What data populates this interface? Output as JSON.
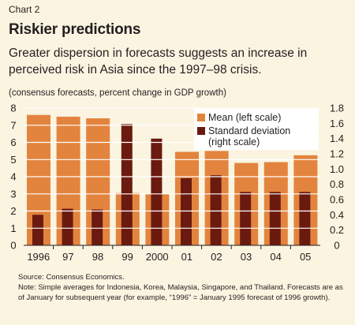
{
  "header": {
    "kicker": "Chart 2",
    "title": "Riskier predictions",
    "subtitle": "Greater dispersion in forecasts suggests an increase in perceived risk in Asia since the 1997–98 crisis.",
    "unit_note": "(consensus forecasts, percent change in GDP growth)"
  },
  "footer": {
    "source": "Source: Consensus Economics.",
    "note": "Note: Simple averages for Indonesia, Korea, Malaysia, Singapore, and Thailand. Forecasts are as of January for subsequent year (for example, “1996” = January 1995 forecast of 1996 growth)."
  },
  "colors": {
    "background": "#fbf4e1",
    "mean": "#e3843e",
    "std": "#6b1a10",
    "grid": "#ffffff",
    "text": "#231f20"
  },
  "chart_data": {
    "type": "bar",
    "categories": [
      "1996",
      "97",
      "98",
      "99",
      "2000",
      "01",
      "02",
      "03",
      "04",
      "05"
    ],
    "series": [
      {
        "name": "Mean (left scale)",
        "axis": "left",
        "values": [
          7.6,
          7.5,
          7.4,
          3.05,
          3.0,
          5.45,
          5.5,
          4.8,
          4.85,
          5.25
        ]
      },
      {
        "name": "Standard deviation (right scale)",
        "axis": "right",
        "values": [
          0.4,
          0.48,
          0.47,
          1.59,
          1.4,
          0.88,
          0.92,
          0.7,
          0.7,
          0.7
        ]
      }
    ],
    "y_left": {
      "range": [
        0,
        8
      ],
      "ticks": [
        "0",
        "1",
        "2",
        "3",
        "4",
        "5",
        "6",
        "7",
        "8"
      ]
    },
    "y_right": {
      "range": [
        0,
        1.8
      ],
      "ticks": [
        "0",
        "0.2",
        "0.4",
        "0.6",
        "0.8",
        "1.0",
        "1.2",
        "1.4",
        "1.6",
        "1.8"
      ]
    },
    "grid": true,
    "legend_position": "top-right"
  }
}
